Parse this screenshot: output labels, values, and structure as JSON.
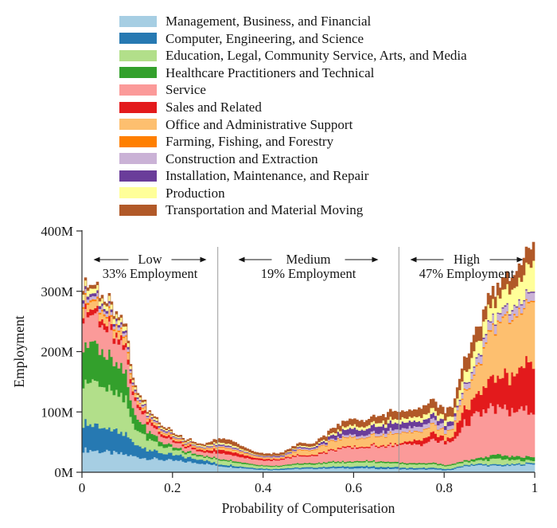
{
  "legend": {
    "items": [
      {
        "label": "Management, Business, and Financial",
        "color": "#a6cee3"
      },
      {
        "label": "Computer, Engineering, and Science",
        "color": "#2679b2"
      },
      {
        "label": "Education, Legal, Community Service, Arts, and Media",
        "color": "#b2df8a"
      },
      {
        "label": "Healthcare Practitioners and Technical",
        "color": "#33a02c"
      },
      {
        "label": "Service",
        "color": "#fb9a99"
      },
      {
        "label": "Sales and Related",
        "color": "#e31a1c"
      },
      {
        "label": "Office and Administrative Support",
        "color": "#fdbf6f"
      },
      {
        "label": "Farming, Fishing, and Forestry",
        "color": "#ff7f00"
      },
      {
        "label": "Construction and Extraction",
        "color": "#cab2d6"
      },
      {
        "label": "Installation, Maintenance, and Repair",
        "color": "#6a3d9a"
      },
      {
        "label": "Production",
        "color": "#ffff99"
      },
      {
        "label": "Transportation and Material Moving",
        "color": "#b15928"
      }
    ]
  },
  "chart_data": {
    "type": "area",
    "stacked": true,
    "title": "",
    "xlabel": "Probability of Computerisation",
    "ylabel": "Employment",
    "xlim": [
      0,
      1
    ],
    "ylim": [
      0,
      400
    ],
    "grid": false,
    "x_ticks": [
      0,
      0.2,
      0.4,
      0.6,
      0.8,
      1
    ],
    "x_tick_labels": [
      "0",
      "0.2",
      "0.4",
      "0.6",
      "0.8",
      "1"
    ],
    "y_ticks": [
      0,
      100,
      200,
      300,
      400
    ],
    "y_tick_labels": [
      "0M",
      "100M",
      "200M",
      "300M",
      "400M"
    ],
    "divider_x": [
      0.3,
      0.7
    ],
    "zones": [
      {
        "label": "Low",
        "employment": "33% Employment",
        "from": 0,
        "to": 0.3
      },
      {
        "label": "Medium",
        "employment": "19% Employment",
        "from": 0.3,
        "to": 0.7
      },
      {
        "label": "High",
        "employment": "47% Employment",
        "from": 0.7,
        "to": 1
      }
    ],
    "x": [
      0,
      0.03,
      0.06,
      0.09,
      0.1,
      0.105,
      0.11,
      0.13,
      0.15,
      0.17,
      0.19,
      0.21,
      0.24,
      0.27,
      0.3,
      0.33,
      0.36,
      0.39,
      0.42,
      0.45,
      0.48,
      0.51,
      0.54,
      0.57,
      0.6,
      0.63,
      0.66,
      0.69,
      0.72,
      0.75,
      0.78,
      0.8,
      0.82,
      0.83,
      0.84,
      0.86,
      0.88,
      0.9,
      0.92,
      0.94,
      0.96,
      0.98,
      0.995,
      1.0
    ],
    "series": [
      {
        "name": "Management, Business, and Financial",
        "color": "#a6cee3",
        "values": [
          38,
          36,
          33,
          30,
          29,
          28,
          27,
          25,
          23,
          22,
          20,
          19,
          17,
          15,
          11,
          9,
          7,
          5,
          4,
          5,
          6,
          6,
          7,
          7,
          7,
          7,
          6,
          6,
          5,
          5,
          5,
          4,
          4,
          8,
          9,
          12,
          12,
          11,
          11,
          11,
          12,
          13,
          14,
          15
        ]
      },
      {
        "name": "Computer, Engineering, and Science",
        "color": "#2679b2",
        "values": [
          45,
          42,
          38,
          34,
          32,
          27,
          22,
          18,
          15,
          12,
          10,
          9,
          7,
          6,
          3,
          3,
          2,
          2,
          1.5,
          2,
          2,
          2,
          2.5,
          2.5,
          3,
          3,
          3,
          3,
          2.5,
          2.5,
          2.5,
          2,
          2,
          2,
          2,
          2,
          2,
          2,
          2,
          2,
          2,
          2,
          2,
          2
        ]
      },
      {
        "name": "Education, Legal, Community Service, Arts, and Media",
        "color": "#b2df8a",
        "values": [
          75,
          70,
          64,
          57,
          54,
          42,
          32,
          24,
          18,
          13,
          10,
          8,
          6,
          5,
          7,
          6,
          5,
          4,
          4,
          4,
          5,
          5,
          6,
          6,
          7,
          7,
          7,
          7,
          6,
          6,
          6,
          5,
          5,
          5,
          5,
          5,
          6,
          8,
          10,
          8,
          6,
          5,
          4,
          3
        ]
      },
      {
        "name": "Healthcare Practitioners and Technical",
        "color": "#33a02c",
        "values": [
          64,
          60,
          55,
          49,
          46,
          36,
          26,
          18,
          12,
          8,
          5,
          4,
          3,
          2,
          2,
          2,
          2,
          1.5,
          1.5,
          1.5,
          2,
          2,
          2,
          2,
          2,
          2,
          2,
          2,
          2,
          2,
          2,
          2,
          2,
          2,
          2.5,
          3,
          4,
          6,
          7,
          6,
          6,
          6,
          6,
          6
        ]
      },
      {
        "name": "Service",
        "color": "#fb9a99",
        "values": [
          52,
          48,
          44,
          40,
          38,
          30,
          23,
          18,
          14,
          11,
          9,
          8,
          7,
          6,
          9,
          9,
          8,
          8,
          9,
          10,
          12,
          12,
          16,
          21,
          22,
          22,
          26,
          28,
          30,
          32,
          38,
          36,
          38,
          48,
          58,
          68,
          72,
          78,
          76,
          75,
          75,
          76,
          77,
          77
        ]
      },
      {
        "name": "Sales and Related",
        "color": "#e31a1c",
        "values": [
          10,
          9,
          9,
          8,
          8,
          7,
          6,
          5,
          5,
          4,
          4,
          3,
          3,
          3,
          6,
          6,
          4,
          3,
          2,
          2,
          2,
          2,
          2,
          2,
          2,
          2,
          2,
          2,
          4,
          9,
          11,
          6,
          7,
          22,
          22,
          27,
          36,
          46,
          50,
          57,
          64,
          74,
          84,
          90
        ]
      },
      {
        "name": "Office and Administrative Support",
        "color": "#fdbf6f",
        "values": [
          14,
          13,
          12,
          11,
          10,
          9,
          7,
          5,
          4,
          4,
          3,
          3,
          2,
          2,
          4,
          4,
          3,
          2,
          2,
          2,
          8,
          7,
          12,
          14,
          15,
          14,
          16,
          17,
          16,
          13,
          13,
          11,
          12,
          22,
          25,
          35,
          50,
          78,
          88,
          94,
          95,
          98,
          100,
          100
        ]
      },
      {
        "name": "Farming, Fishing, and Forestry",
        "color": "#ff7f00",
        "values": [
          3,
          3,
          3,
          2,
          2,
          2,
          2,
          1,
          1,
          1,
          1,
          1,
          1,
          1,
          1,
          1,
          1,
          0.5,
          0.5,
          0.5,
          1,
          1,
          1,
          1,
          1,
          1,
          1,
          1,
          1,
          1,
          1,
          1,
          1,
          1,
          1.5,
          2,
          2,
          2,
          2,
          2,
          2,
          2,
          2,
          2
        ]
      },
      {
        "name": "Construction and Extraction",
        "color": "#cab2d6",
        "values": [
          6,
          6,
          5,
          5,
          4,
          4,
          3,
          3,
          2,
          2,
          2,
          1,
          1,
          1,
          2,
          2,
          1,
          1,
          1.5,
          1.5,
          2,
          2,
          2,
          3,
          4,
          4,
          5,
          6,
          7,
          8,
          8,
          7,
          7,
          6,
          8,
          10,
          12,
          13,
          13,
          13,
          13,
          13,
          14,
          14
        ]
      },
      {
        "name": "Installation, Maintenance, and Repair",
        "color": "#6a3d9a",
        "values": [
          5,
          5,
          4,
          4,
          4,
          3,
          3,
          2,
          2,
          2,
          2,
          1,
          1,
          1,
          2,
          2,
          1,
          1,
          1.5,
          1.5,
          2,
          2,
          4,
          8,
          10,
          10,
          11,
          11,
          10,
          8,
          8,
          7,
          7,
          2,
          2,
          2,
          2,
          2,
          2,
          2,
          2,
          2,
          2,
          2
        ]
      },
      {
        "name": "Production",
        "color": "#ffff99",
        "values": [
          9,
          8,
          8,
          7,
          7,
          6,
          4,
          4,
          3,
          3,
          2,
          2,
          2,
          2,
          3,
          3,
          2,
          1,
          0.5,
          1,
          2,
          2,
          3,
          4,
          5,
          5,
          6,
          6,
          7,
          8,
          9,
          8,
          9,
          14,
          17,
          22,
          24,
          25,
          26,
          30,
          32,
          40,
          46,
          50
        ]
      },
      {
        "name": "Transportation and Material Moving",
        "color": "#b15928",
        "values": [
          5,
          5,
          4,
          4,
          4,
          3,
          3,
          3,
          2,
          2,
          2,
          2,
          2,
          2,
          6,
          6,
          4,
          3,
          3,
          3,
          4,
          4,
          6,
          8,
          10,
          9,
          11,
          12,
          12,
          13,
          14,
          13,
          14,
          18,
          20,
          24,
          22,
          20,
          18,
          20,
          22,
          28,
          32,
          38
        ]
      }
    ]
  }
}
